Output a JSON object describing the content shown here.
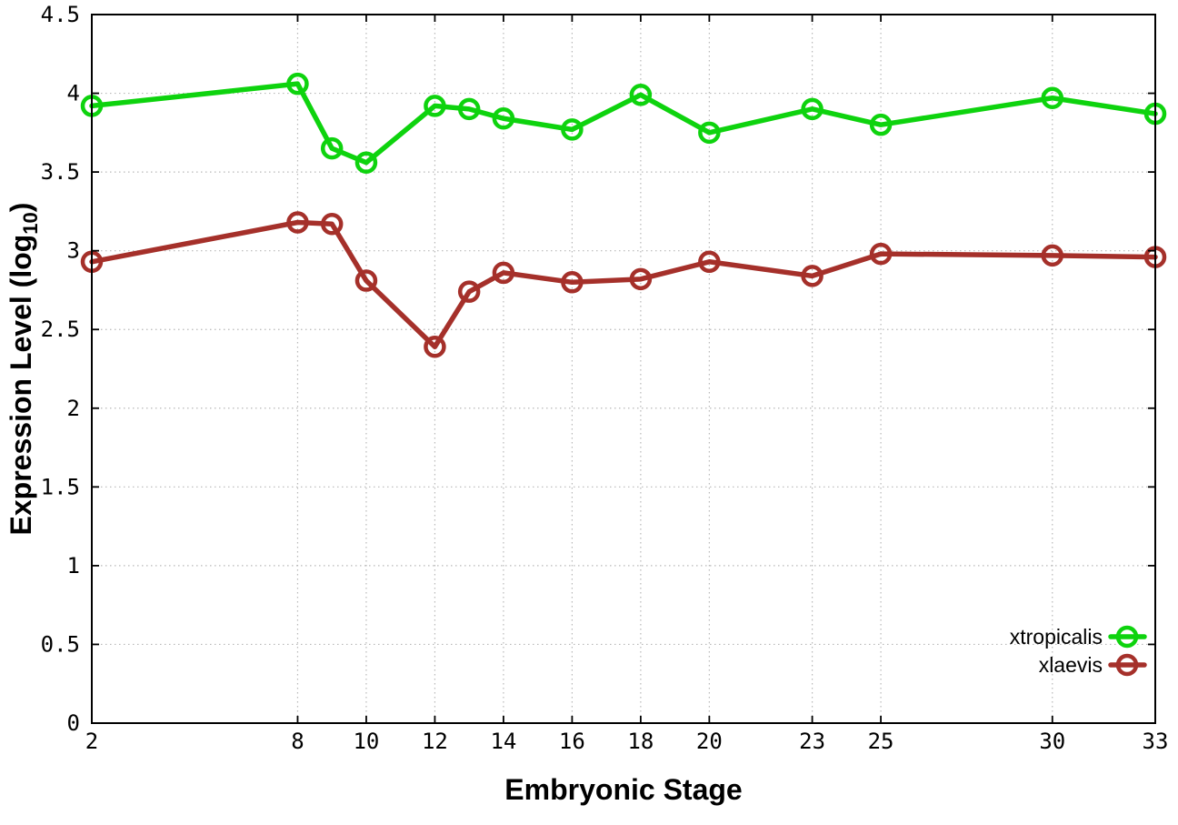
{
  "chart_data": {
    "type": "line",
    "title": "",
    "xlabel": "Embryonic Stage",
    "ylabel": "Expression Level (log10)",
    "ylabel_parts": {
      "base": "Expression Level (log",
      "subscript": "10",
      "suffix": ")"
    },
    "xlim": [
      2,
      33
    ],
    "ylim": [
      0,
      4.5
    ],
    "grid": true,
    "legend_position": "inside-bottom-right",
    "x": [
      2,
      8,
      9,
      10,
      12,
      13,
      14,
      16,
      18,
      20,
      23,
      25,
      30,
      33
    ],
    "xticks": [
      {
        "v": 2,
        "label": "2"
      },
      {
        "v": 8,
        "label": "8"
      },
      {
        "v": 10,
        "label": "10"
      },
      {
        "v": 12,
        "label": "12"
      },
      {
        "v": 14,
        "label": "14"
      },
      {
        "v": 16,
        "label": "16"
      },
      {
        "v": 18,
        "label": "18"
      },
      {
        "v": 20,
        "label": "20"
      },
      {
        "v": 23,
        "label": "23"
      },
      {
        "v": 25,
        "label": "25"
      },
      {
        "v": 30,
        "label": "30"
      },
      {
        "v": 33,
        "label": "33"
      }
    ],
    "yticks": [
      {
        "v": 0,
        "label": "0"
      },
      {
        "v": 0.5,
        "label": "0.5"
      },
      {
        "v": 1,
        "label": "1"
      },
      {
        "v": 1.5,
        "label": "1.5"
      },
      {
        "v": 2,
        "label": "2"
      },
      {
        "v": 2.5,
        "label": "2.5"
      },
      {
        "v": 3,
        "label": "3"
      },
      {
        "v": 3.5,
        "label": "3.5"
      },
      {
        "v": 4,
        "label": "4"
      },
      {
        "v": 4.5,
        "label": "4.5"
      }
    ],
    "series": [
      {
        "name": "xtropicalis",
        "color": "#0ed30e",
        "values": [
          3.92,
          4.06,
          3.65,
          3.56,
          3.92,
          3.9,
          3.84,
          3.77,
          3.99,
          3.75,
          3.9,
          3.8,
          3.97,
          3.87
        ]
      },
      {
        "name": "xlaevis",
        "color": "#a5302a",
        "values": [
          2.93,
          3.18,
          3.17,
          2.81,
          2.39,
          2.74,
          2.86,
          2.8,
          2.82,
          2.93,
          2.84,
          2.98,
          2.97,
          2.96
        ]
      }
    ]
  },
  "colors": {
    "background": "#ffffff",
    "border": "#000000",
    "grid": "#b8b8b8",
    "text": "#000000"
  }
}
